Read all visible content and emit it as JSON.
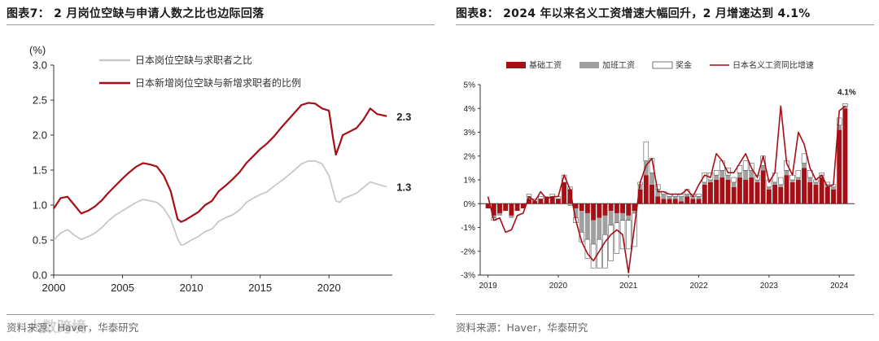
{
  "left_panel": {
    "title": "图表7： 2 月岗位空缺与申请人数之比也边际回落",
    "source": "资料来源：Haver，华泰研究",
    "watermark": "大数跨境"
  },
  "right_panel": {
    "title": "图表8： 2024 年以来名义工资增速大幅回升，2 月增速达到 4.1%",
    "source": "资料来源：Haver，华泰研究"
  },
  "chart_data": [
    {
      "type": "line",
      "ylabel": "(%)",
      "ylim": [
        0,
        3.0
      ],
      "yticks": [
        "0.0",
        "0.5",
        "1.0",
        "1.5",
        "2.0",
        "2.5",
        "3.0"
      ],
      "xlim": [
        2000,
        2024.6
      ],
      "xticks": [
        "2000",
        "2005",
        "2010",
        "2015",
        "2020"
      ],
      "legend_position": "top-left",
      "series": [
        {
          "name": "日本岗位空缺与求职者之比",
          "color": "#c8c8c8",
          "end_label": "1.3",
          "x": [
            2000.0,
            2000.5,
            2001.0,
            2001.5,
            2002.0,
            2002.5,
            2003.0,
            2003.5,
            2004.0,
            2004.5,
            2005.0,
            2005.5,
            2006.0,
            2006.5,
            2007.0,
            2007.5,
            2008.0,
            2008.5,
            2009.0,
            2009.25,
            2009.5,
            2010.0,
            2010.5,
            2011.0,
            2011.5,
            2012.0,
            2012.5,
            2013.0,
            2013.5,
            2014.0,
            2014.5,
            2015.0,
            2015.5,
            2016.0,
            2016.5,
            2017.0,
            2017.5,
            2018.0,
            2018.5,
            2019.0,
            2019.5,
            2020.0,
            2020.3,
            2020.5,
            2020.8,
            2021.0,
            2021.5,
            2022.0,
            2022.5,
            2023.0,
            2023.5,
            2024.0,
            2024.2
          ],
          "values": [
            0.5,
            0.6,
            0.65,
            0.57,
            0.51,
            0.55,
            0.6,
            0.68,
            0.78,
            0.86,
            0.92,
            0.98,
            1.04,
            1.08,
            1.06,
            1.04,
            0.95,
            0.8,
            0.52,
            0.43,
            0.44,
            0.5,
            0.55,
            0.62,
            0.66,
            0.77,
            0.82,
            0.86,
            0.93,
            1.04,
            1.1,
            1.15,
            1.19,
            1.27,
            1.34,
            1.42,
            1.5,
            1.59,
            1.63,
            1.63,
            1.59,
            1.42,
            1.2,
            1.06,
            1.04,
            1.09,
            1.13,
            1.17,
            1.25,
            1.33,
            1.3,
            1.27,
            1.26
          ]
        },
        {
          "name": "日本新增岗位空缺与新增求职者的比例",
          "color": "#a50f15",
          "end_label": "2.3",
          "x": [
            2000.0,
            2000.5,
            2001.0,
            2001.5,
            2002.0,
            2002.5,
            2003.0,
            2003.5,
            2004.0,
            2004.5,
            2005.0,
            2005.5,
            2006.0,
            2006.5,
            2007.0,
            2007.5,
            2008.0,
            2008.5,
            2009.0,
            2009.25,
            2009.5,
            2010.0,
            2010.5,
            2011.0,
            2011.5,
            2012.0,
            2012.5,
            2013.0,
            2013.5,
            2014.0,
            2014.5,
            2015.0,
            2015.5,
            2016.0,
            2016.5,
            2017.0,
            2017.5,
            2018.0,
            2018.5,
            2019.0,
            2019.5,
            2020.0,
            2020.3,
            2020.5,
            2020.8,
            2021.0,
            2021.5,
            2022.0,
            2022.5,
            2023.0,
            2023.5,
            2024.0,
            2024.2
          ],
          "values": [
            0.95,
            1.1,
            1.12,
            1.0,
            0.88,
            0.92,
            0.98,
            1.07,
            1.18,
            1.28,
            1.38,
            1.47,
            1.55,
            1.6,
            1.58,
            1.55,
            1.42,
            1.2,
            0.8,
            0.76,
            0.78,
            0.84,
            0.9,
            1.0,
            1.06,
            1.2,
            1.28,
            1.37,
            1.47,
            1.6,
            1.7,
            1.8,
            1.88,
            1.98,
            2.1,
            2.21,
            2.32,
            2.43,
            2.46,
            2.45,
            2.38,
            2.35,
            1.95,
            1.72,
            1.88,
            2.0,
            2.05,
            2.1,
            2.22,
            2.38,
            2.3,
            2.28,
            2.27
          ]
        }
      ]
    },
    {
      "type": "bar",
      "stacked": true,
      "ylabel": "",
      "ylim": [
        -3,
        5
      ],
      "yticks": [
        "-3%",
        "-2%",
        "-1%",
        "0%",
        "1%",
        "2%",
        "3%",
        "4%",
        "5%"
      ],
      "xticks": [
        "2019",
        "2020",
        "2021",
        "2022",
        "2023",
        "2024"
      ],
      "legend_position": "top",
      "annotation": "4.1%",
      "x": [
        "2019-01",
        "2019-02",
        "2019-03",
        "2019-04",
        "2019-05",
        "2019-06",
        "2019-07",
        "2019-08",
        "2019-09",
        "2019-10",
        "2019-11",
        "2019-12",
        "2020-01",
        "2020-02",
        "2020-03",
        "2020-04",
        "2020-05",
        "2020-06",
        "2020-07",
        "2020-08",
        "2020-09",
        "2020-10",
        "2020-11",
        "2020-12",
        "2021-01",
        "2021-02",
        "2021-03",
        "2021-04",
        "2021-05",
        "2021-06",
        "2021-07",
        "2021-08",
        "2021-09",
        "2021-10",
        "2021-11",
        "2021-12",
        "2022-01",
        "2022-02",
        "2022-03",
        "2022-04",
        "2022-05",
        "2022-06",
        "2022-07",
        "2022-08",
        "2022-09",
        "2022-10",
        "2022-11",
        "2022-12",
        "2023-01",
        "2023-02",
        "2023-03",
        "2023-04",
        "2023-05",
        "2023-06",
        "2023-07",
        "2023-08",
        "2023-09",
        "2023-10",
        "2023-11",
        "2023-12",
        "2024-01",
        "2024-02"
      ],
      "series": [
        {
          "name": "基础工资",
          "color": "#a50f15",
          "values": [
            -0.2,
            -0.5,
            -0.4,
            -0.3,
            -0.5,
            -0.3,
            -0.2,
            0.2,
            0.1,
            0.2,
            0.3,
            0.3,
            0.2,
            0.9,
            0.6,
            -0.2,
            -0.3,
            -0.4,
            -0.7,
            -0.6,
            -0.5,
            -0.3,
            -0.4,
            -0.4,
            -0.5,
            -0.3,
            0.6,
            1.2,
            0.8,
            0.3,
            0.2,
            0.2,
            0.2,
            0.1,
            0.3,
            0.2,
            0.2,
            0.8,
            0.9,
            1.0,
            1.1,
            1.0,
            0.7,
            1.1,
            1.0,
            1.1,
            0.9,
            1.4,
            0.6,
            0.8,
            0.7,
            1.2,
            0.9,
            1.0,
            1.5,
            0.9,
            0.8,
            1.1,
            0.7,
            0.6,
            3.1,
            4.0
          ]
        },
        {
          "name": "加班工资",
          "color": "#a0a0a0",
          "values": [
            0.0,
            -0.1,
            -0.1,
            0.0,
            -0.1,
            0.0,
            0.0,
            0.1,
            0.0,
            0.0,
            0.0,
            0.0,
            0.0,
            0.0,
            -0.1,
            -0.4,
            -0.9,
            -1.1,
            -1.0,
            -0.9,
            -0.8,
            -0.6,
            -0.4,
            -0.3,
            -0.2,
            -0.1,
            0.2,
            0.6,
            0.5,
            0.3,
            0.2,
            0.1,
            0.1,
            0.2,
            0.1,
            0.1,
            0.1,
            0.1,
            0.1,
            0.2,
            0.3,
            0.2,
            0.2,
            0.2,
            0.4,
            0.3,
            0.1,
            0.2,
            0.1,
            0.1,
            0.1,
            0.2,
            0.1,
            0.1,
            0.2,
            0.2,
            0.1,
            0.1,
            0.1,
            0.1,
            0.2,
            0.1
          ]
        },
        {
          "name": "奖金",
          "color": "#ffffff",
          "values": [
            0.0,
            -0.1,
            0.0,
            0.0,
            0.0,
            0.0,
            0.0,
            0.1,
            0.1,
            0.1,
            0.0,
            0.1,
            0.1,
            0.3,
            0.1,
            -0.2,
            -0.4,
            -0.8,
            -1.0,
            -1.2,
            -1.4,
            -1.5,
            -1.3,
            -1.2,
            -1.2,
            -1.4,
            0.1,
            0.8,
            0.6,
            0.2,
            0.1,
            0.1,
            0.1,
            0.1,
            0.2,
            0.1,
            0.1,
            0.4,
            0.3,
            0.2,
            0.4,
            0.3,
            0.2,
            0.3,
            0.4,
            0.3,
            0.2,
            0.4,
            0.3,
            0.4,
            0.3,
            0.4,
            0.2,
            0.3,
            0.4,
            0.3,
            0.1,
            0.1,
            0.1,
            0.1,
            0.3,
            0.1
          ]
        },
        {
          "name": "日本名义工资同比增速",
          "type": "line",
          "color": "#a50f15",
          "values": [
            0.3,
            -0.7,
            -0.6,
            -1.2,
            -1.1,
            -0.5,
            -0.4,
            0.3,
            0.1,
            0.5,
            0.2,
            0.3,
            0.3,
            1.2,
            0.6,
            -0.7,
            -1.6,
            -2.1,
            -2.4,
            -2.0,
            -1.6,
            -1.3,
            -1.1,
            -1.3,
            -2.9,
            -1.0,
            0.9,
            1.6,
            1.9,
            0.5,
            0.5,
            0.4,
            0.4,
            0.4,
            0.6,
            0.3,
            0.8,
            1.2,
            1.1,
            2.1,
            1.8,
            1.3,
            1.3,
            1.7,
            2.1,
            1.5,
            1.1,
            2.0,
            0.9,
            1.3,
            4.1,
            1.7,
            1.2,
            3.0,
            2.5,
            1.5,
            1.0,
            1.2,
            0.7,
            0.8,
            3.9,
            4.1
          ]
        }
      ]
    }
  ]
}
